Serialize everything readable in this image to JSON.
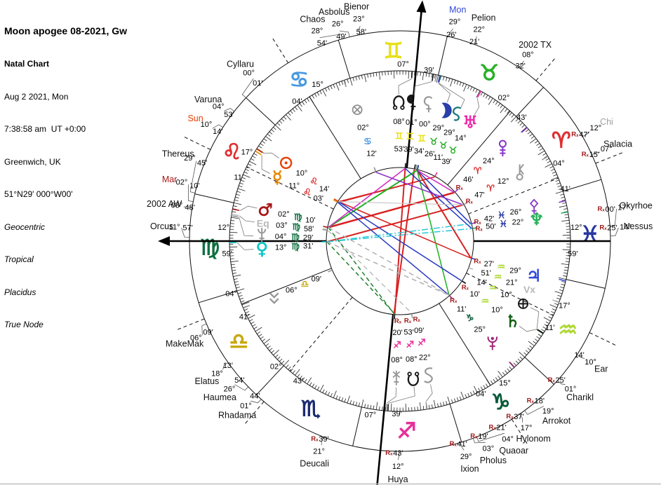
{
  "header": {
    "title": "Moon apogee 08-2021, Gw",
    "chart_type": "Natal Chart",
    "date": "Aug 2 2021, Mon",
    "time": "7:38:58 am  UT +0:00",
    "location": "Greenwich, UK",
    "coordinates": "51°N29' 000°W00'",
    "settings": [
      "Geocentric",
      "Tropical",
      "Placidus",
      "True Node"
    ]
  },
  "wheel": {
    "ascendant_longitude": 162.983,
    "signs": [
      {
        "name": "aries",
        "symbol": "♈",
        "color": "#e03030"
      },
      {
        "name": "taurus",
        "symbol": "♉",
        "color": "#28b028"
      },
      {
        "name": "gemini",
        "symbol": "♊",
        "color": "#e8e018"
      },
      {
        "name": "cancer",
        "symbol": "♋",
        "color": "#4898e0"
      },
      {
        "name": "leo",
        "symbol": "♌",
        "color": "#e03030"
      },
      {
        "name": "virgo",
        "symbol": "♍",
        "color": "#0e7040"
      },
      {
        "name": "libra",
        "symbol": "♎",
        "color": "#c8a810"
      },
      {
        "name": "scorpio",
        "symbol": "♏",
        "color": "#1c2a70"
      },
      {
        "name": "sagittarius",
        "symbol": "♐",
        "color": "#e83098"
      },
      {
        "name": "capricorn",
        "symbol": "♑",
        "color": "#0a5a38"
      },
      {
        "name": "aquarius",
        "symbol": "♒",
        "color": "#b0d838"
      },
      {
        "name": "pisces",
        "symbol": "♓",
        "color": "#2838a0"
      }
    ],
    "cusps": [
      {
        "house": 1,
        "deg": "12°",
        "min": "59'",
        "lon": 162.983,
        "style": "axis-arrow"
      },
      {
        "house": 2,
        "deg": "04°",
        "min": "41'",
        "lon": 184.683,
        "style": "solid"
      },
      {
        "house": 3,
        "deg": "02°",
        "min": "43'",
        "lon": 212.717,
        "style": "dashed"
      },
      {
        "house": 4,
        "deg": "07°",
        "min": "39'",
        "lon": 247.65,
        "style": "axis-long"
      },
      {
        "house": 5,
        "deg": "15°",
        "min": "04'",
        "lon": 285.067,
        "style": "solid"
      },
      {
        "house": 6,
        "deg": "17°",
        "min": "11'",
        "lon": 317.183,
        "style": "dashed"
      },
      {
        "house": 7,
        "deg": "12°",
        "min": "59'",
        "lon": 342.983,
        "style": "axis"
      },
      {
        "house": 8,
        "deg": "04°",
        "min": "41'",
        "lon": 4.683,
        "style": "dashed"
      },
      {
        "house": 9,
        "deg": "02°",
        "min": "43'",
        "lon": 32.717,
        "style": "solid"
      },
      {
        "house": 10,
        "deg": "07°",
        "min": "39'",
        "lon": 67.65,
        "style": "axis-arrow"
      },
      {
        "house": 11,
        "deg": "15°",
        "min": "04'",
        "lon": 105.067,
        "style": "solid"
      },
      {
        "house": 12,
        "deg": "17°",
        "min": "11'",
        "lon": 137.183,
        "style": "dashed"
      }
    ],
    "objects": [
      {
        "id": "sun",
        "glyph": "sun",
        "color": "#e84000",
        "deg": "10°",
        "min": "14'",
        "sign": 4,
        "retro": false,
        "lon": 130.233,
        "disp": 214.5
      },
      {
        "id": "mercury",
        "glyph": "char:☿",
        "color": "#e88800",
        "deg": "11°",
        "min": "03'",
        "sign": 4,
        "retro": false,
        "lon": 131.05,
        "disp": 207.5
      },
      {
        "id": "venus",
        "glyph": "char:♀",
        "color": "#10c8c8",
        "deg": "13°",
        "min": "31'",
        "sign": 5,
        "retro": false,
        "lon": 163.517,
        "disp": 176.8
      },
      {
        "id": "mars",
        "glyph": "char:♂",
        "color": "#a81818",
        "deg": "02°",
        "min": "10'",
        "sign": 5,
        "retro": false,
        "lon": 152.167,
        "disp": 193
      },
      {
        "id": "east-point",
        "glyph": "text:Eq",
        "color": "#b8b8b8",
        "deg": "03°",
        "min": "58'",
        "sign": 5,
        "retro": false,
        "lon": 153.967,
        "disp": 187.5
      },
      {
        "id": "vesta",
        "glyph": "vesta",
        "color": "#989898",
        "deg": "04°",
        "min": "29'",
        "sign": 5,
        "retro": false,
        "lon": 154.483,
        "disp": 182
      },
      {
        "id": "makemake",
        "glyph": "makemake",
        "color": "#989898",
        "deg": "06°",
        "min": "09'",
        "sign": 6,
        "retro": false,
        "lon": 186.15,
        "disp": 155.5
      },
      {
        "id": "juno",
        "glyph": "juno",
        "color": "#989898",
        "deg": "08°",
        "min": "20'",
        "sign": 8,
        "retro": true,
        "lon": 248.333,
        "disp": 91.5
      },
      {
        "id": "south-node",
        "glyph": "snode",
        "color": "#181818",
        "deg": "08°",
        "min": "53'",
        "sign": 8,
        "retro": true,
        "lon": 248.883,
        "disp": 84.5
      },
      {
        "id": "hygiea",
        "glyph": "hygiea",
        "color": "#989898",
        "deg": "22°",
        "min": "09'",
        "sign": 8,
        "retro": true,
        "lon": 262.15,
        "disp": 78
      },
      {
        "id": "pluto",
        "glyph": "pluto",
        "color": "#a02878",
        "deg": "25°",
        "min": "11'",
        "sign": 9,
        "retro": true,
        "lon": 295.183,
        "disp": 48
      },
      {
        "id": "saturn",
        "glyph": "char:♄",
        "color": "#156015",
        "deg": "10°",
        "min": "10'",
        "sign": 10,
        "retro": true,
        "lon": 310.167,
        "disp": 35.5
      },
      {
        "id": "earth",
        "glyph": "earth",
        "color": "#181818",
        "deg": "10°",
        "min": "14'",
        "sign": 10,
        "retro": false,
        "lon": 310.233,
        "disp": 27
      },
      {
        "id": "vertex",
        "glyph": "text:Vx",
        "color": "#b8b8b8",
        "deg": "21°",
        "min": "51'",
        "sign": 10,
        "retro": false,
        "lon": 321.85,
        "disp": 20.5
      },
      {
        "id": "jupiter",
        "glyph": "char:♃",
        "color": "#3048d8",
        "deg": "29°",
        "min": "27'",
        "sign": 10,
        "retro": true,
        "lon": 329.45,
        "disp": 14.5
      },
      {
        "id": "neptune",
        "glyph": "char:♆",
        "color": "#28b058",
        "deg": "22°",
        "min": "50'",
        "sign": 11,
        "retro": true,
        "lon": 352.833,
        "disp": 351
      },
      {
        "id": "pallas",
        "glyph": "pallas",
        "color": "#8838c8",
        "deg": "26°",
        "min": "42'",
        "sign": 11,
        "retro": true,
        "lon": 356.7,
        "disp": 346
      },
      {
        "id": "chiron",
        "glyph": "chiron",
        "color": "#989898",
        "deg": "12°",
        "min": "47'",
        "sign": 0,
        "retro": true,
        "lon": 12.783,
        "disp": 330
      },
      {
        "id": "eris",
        "glyph": "eris",
        "color": "#8838c8",
        "deg": "24°",
        "min": "46'",
        "sign": 0,
        "retro": true,
        "lon": 24.767,
        "disp": 318
      },
      {
        "id": "uranus",
        "glyph": "char:♅",
        "color": "#f028a8",
        "deg": "14°",
        "min": "39'",
        "sign": 1,
        "retro": false,
        "lon": 44.65,
        "disp": 300.5
      },
      {
        "id": "sedna",
        "glyph": "sedna",
        "color": "#187878",
        "deg": "29°",
        "min": "11'",
        "sign": 1,
        "retro": false,
        "lon": 59.183,
        "disp": 294.5
      },
      {
        "id": "moon",
        "glyph": "moon",
        "color": "#2840a8",
        "deg": "29°",
        "min": "26'",
        "sign": 1,
        "retro": false,
        "lon": 59.433,
        "disp": 288.8
      },
      {
        "id": "ceres",
        "glyph": "ceres",
        "color": "#989898",
        "deg": "00°",
        "min": "34'",
        "sign": 2,
        "retro": false,
        "lon": 60.567,
        "disp": 282
      },
      {
        "id": "lilith",
        "glyph": "lilith",
        "color": "#181818",
        "deg": "01°",
        "min": "39'",
        "sign": 2,
        "retro": false,
        "lon": 61.65,
        "disp": 275.5
      },
      {
        "id": "north-node",
        "glyph": "node",
        "color": "#181818",
        "deg": "08°",
        "min": "53'",
        "sign": 2,
        "retro": false,
        "lon": 68.883,
        "disp": 269.5
      },
      {
        "id": "fortune",
        "glyph": "fortune",
        "color": "#909090",
        "deg": "02°",
        "min": "12'",
        "sign": 3,
        "retro": false,
        "lon": 92.2,
        "disp": 252
      }
    ],
    "outer_labels": [
      {
        "text": "Bienor",
        "color": "#101010",
        "deg": "23°",
        "min": "58'",
        "retro": false,
        "lon": 83.967,
        "disp": 259.5
      },
      {
        "text": "Asbolus",
        "color": "#101010",
        "deg": "26°",
        "min": "49'",
        "retro": false,
        "lon": 86.817,
        "disp": 254
      },
      {
        "text": "Chaos",
        "color": "#101010",
        "deg": "28°",
        "min": "54'",
        "retro": false,
        "lon": 88.9,
        "disp": 248.5
      },
      {
        "text": "Mon",
        "color": "#3048d8",
        "deg": "29°",
        "min": "26'",
        "retro": false,
        "lon": 59.433,
        "disp": 284
      },
      {
        "text": "Pelion",
        "color": "#101010",
        "deg": "22°",
        "min": "21'",
        "retro": false,
        "lon": 52.35,
        "disp": 290.5
      },
      {
        "text": "2002 TX",
        "color": "#101010",
        "deg": "08°",
        "min": "32'",
        "retro": false,
        "lon": 38.533,
        "disp": 304.5
      },
      {
        "text": "Chi",
        "color": "#a0a0a0",
        "deg": "12°",
        "min": "47'",
        "retro": true,
        "lon": 12.783,
        "disp": 330
      },
      {
        "text": "Salacia",
        "color": "#101010",
        "deg": "07°",
        "min": "15'",
        "retro": true,
        "lon": 7.25,
        "disp": 336
      },
      {
        "text": "Okyrhoe",
        "color": "#101010",
        "deg": "17°",
        "min": "00'",
        "retro": true,
        "lon": 347.0,
        "disp": 351.5
      },
      {
        "text": "Nessus",
        "color": "#101010",
        "deg": "14°",
        "min": "25'",
        "retro": true,
        "lon": 344.417,
        "disp": 356.5
      },
      {
        "text": "Ear",
        "color": "#101010",
        "deg": "10°",
        "min": "14'",
        "retro": false,
        "lon": 310.233,
        "disp": 32.5
      },
      {
        "text": "Charikl",
        "color": "#101010",
        "deg": "01°",
        "min": "25'",
        "retro": true,
        "lon": 301.417,
        "disp": 41
      },
      {
        "text": "Arrokot",
        "color": "#101010",
        "deg": "19°",
        "min": "18'",
        "retro": true,
        "lon": 289.3,
        "disp": 49
      },
      {
        "text": "Hylonom",
        "color": "#101010",
        "deg": "17°",
        "min": "37'",
        "retro": true,
        "lon": 287.617,
        "disp": 56
      },
      {
        "text": "Quaoar",
        "color": "#101010",
        "deg": "04°",
        "min": "21'",
        "retro": true,
        "lon": 274.35,
        "disp": 61.5
      },
      {
        "text": "Pholus",
        "color": "#101010",
        "deg": "03°",
        "min": "19'",
        "retro": true,
        "lon": 273.317,
        "disp": 67
      },
      {
        "text": "Ixion",
        "color": "#101010",
        "deg": "29°",
        "min": "41'",
        "retro": true,
        "lon": 269.683,
        "disp": 73
      },
      {
        "text": "Huya",
        "color": "#101010",
        "deg": "12°",
        "min": "43'",
        "retro": true,
        "lon": 252.717,
        "disp": 90.5
      },
      {
        "text": "Deucali",
        "color": "#101010",
        "deg": "21°",
        "min": "39'",
        "retro": true,
        "lon": 231.65,
        "disp": 111
      },
      {
        "text": "Rhadama",
        "color": "#101010",
        "deg": "01°",
        "min": "44'",
        "retro": false,
        "lon": 211.733,
        "disp": 133
      },
      {
        "text": "Haumea",
        "color": "#101010",
        "deg": "26°",
        "min": "54'",
        "retro": false,
        "lon": 206.9,
        "disp": 139
      },
      {
        "text": "Elatus",
        "color": "#101010",
        "deg": "18°",
        "min": "13'",
        "retro": false,
        "lon": 198.217,
        "disp": 144
      },
      {
        "text": "MakeMak",
        "color": "#101010",
        "deg": "06°",
        "min": "09'",
        "retro": false,
        "lon": 186.15,
        "disp": 154.5
      },
      {
        "text": "Orcus",
        "color": "#101010",
        "deg": "11°",
        "min": "57'",
        "retro": false,
        "lon": 161.95,
        "disp": 183.5
      },
      {
        "text": "2002 AW",
        "color": "#101010",
        "deg": "03°",
        "min": "48'",
        "retro": false,
        "lon": 153.8,
        "disp": 189
      },
      {
        "text": "Mar",
        "color": "#a81818",
        "deg": "02°",
        "min": "10'",
        "retro": false,
        "lon": 152.167,
        "disp": 195
      },
      {
        "text": "Thereus",
        "color": "#101010",
        "deg": "29°",
        "min": "45'",
        "retro": false,
        "lon": 149.75,
        "disp": 201.5
      },
      {
        "text": "Sun",
        "color": "#e84000",
        "deg": "10°",
        "min": "14'",
        "retro": false,
        "lon": 130.233,
        "disp": 211
      },
      {
        "text": "Varuna",
        "color": "#101010",
        "deg": "04°",
        "min": "53'",
        "retro": false,
        "lon": 124.883,
        "disp": 216.5
      },
      {
        "text": "Cyllaru",
        "color": "#101010",
        "deg": "00°",
        "min": "01'",
        "retro": false,
        "lon": 120.017,
        "disp": 228
      }
    ],
    "aspects": [
      {
        "a": "north-node",
        "b": "south-node",
        "color": "#d82020",
        "w": 2,
        "dash": ""
      },
      {
        "a": "lilith",
        "b": "juno",
        "color": "#d82020",
        "w": 2,
        "dash": ""
      },
      {
        "a": "mars",
        "b": "eris",
        "color": "#d82020",
        "w": 2.5,
        "dash": ""
      },
      {
        "a": "venus",
        "b": "chiron",
        "color": "#d82020",
        "w": 2,
        "dash": ""
      },
      {
        "a": "sun",
        "b": "jupiter",
        "color": "#d82020",
        "w": 1.5,
        "dash": ""
      },
      {
        "a": "mercury",
        "b": "uranus",
        "color": "#d82020",
        "w": 1.5,
        "dash": ""
      },
      {
        "a": "sun",
        "b": "uranus",
        "color": "#d82020",
        "w": 1.5,
        "dash": ""
      },
      {
        "a": "moon",
        "b": "jupiter",
        "color": "#d82020",
        "w": 2,
        "dash": ""
      },
      {
        "a": "moon",
        "b": "mars",
        "color": "#20b020",
        "w": 2,
        "dash": ""
      },
      {
        "a": "moon",
        "b": "pluto",
        "color": "#20b020",
        "w": 1.5,
        "dash": ""
      },
      {
        "a": "venus",
        "b": "south-node",
        "color": "#208030",
        "w": 1.5,
        "dash": "6,4"
      },
      {
        "a": "mars",
        "b": "juno",
        "color": "#208030",
        "w": 1.5,
        "dash": "6,4"
      },
      {
        "a": "north-node",
        "b": "neptune",
        "color": "#2838c0",
        "w": 1.5,
        "dash": ""
      },
      {
        "a": "moon",
        "b": "pallas",
        "color": "#2838c0",
        "w": 1.5,
        "dash": ""
      },
      {
        "a": "mercury",
        "b": "pluto",
        "color": "#2838c0",
        "w": 1.5,
        "dash": ""
      },
      {
        "a": "sun",
        "b": "saturn",
        "color": "#2838c0",
        "w": 1.5,
        "dash": ""
      },
      {
        "a": "north-node",
        "b": "mars",
        "color": "#d028c0",
        "w": 1.5,
        "dash": ""
      },
      {
        "a": "moon",
        "b": "eris",
        "color": "#d028c0",
        "w": 1.5,
        "dash": ""
      },
      {
        "a": "fortune",
        "b": "chiron",
        "color": "#8828c8",
        "w": 1.5,
        "dash": ""
      },
      {
        "a": "venus",
        "b": "pallas",
        "color": "#28c8d8",
        "w": 1.5,
        "dash": "9,3,2,3"
      },
      {
        "a": "venus",
        "b": "neptune",
        "color": "#28c8d8",
        "w": 1.5,
        "dash": "9,3,2,3"
      },
      {
        "a": "mars",
        "b": "pluto",
        "color": "#b0b0b0",
        "w": 1.5,
        "dash": "7,5"
      },
      {
        "a": "venus",
        "b": "pluto",
        "color": "#b0b0b0",
        "w": 1.5,
        "dash": "7,5"
      },
      {
        "a": "vesta",
        "b": "hygiea",
        "color": "#b0b0b0",
        "w": 1.2,
        "dash": "7,5"
      },
      {
        "a": "sun",
        "b": "chiron",
        "color": "#c8c8c8",
        "w": 1.2,
        "dash": ""
      }
    ],
    "retro_color": "#a01818"
  }
}
